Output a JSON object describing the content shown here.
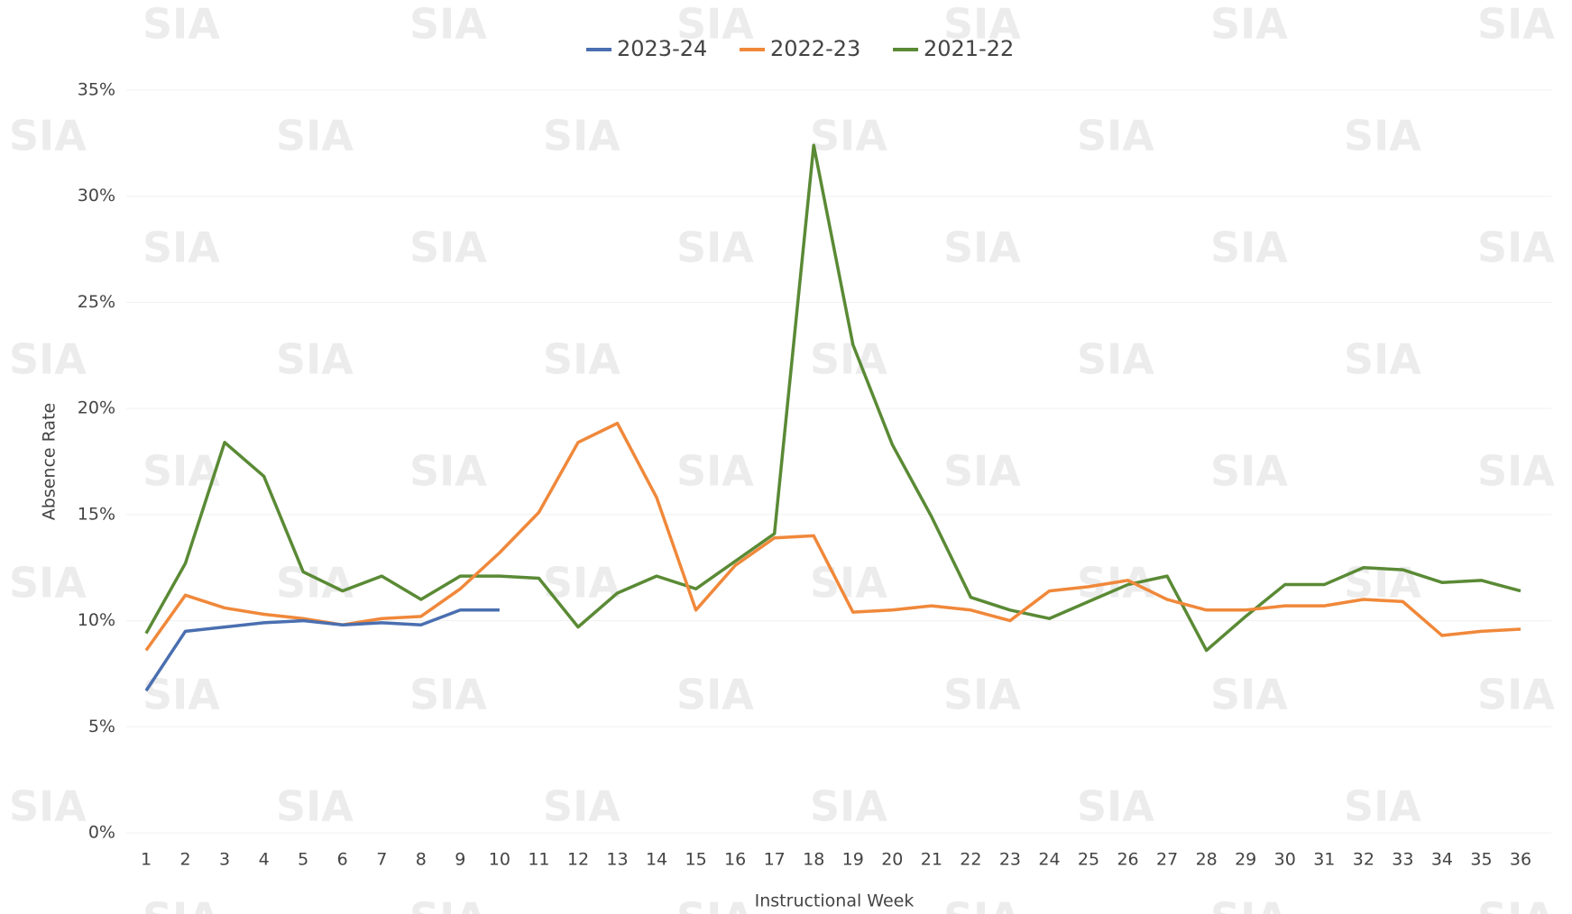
{
  "chart_data": {
    "type": "line",
    "watermark": "SIA",
    "x_label": "Instructional Week",
    "y_label": "Absence Rate",
    "categories": [
      "1",
      "2",
      "3",
      "4",
      "5",
      "6",
      "7",
      "8",
      "9",
      "10",
      "11",
      "12",
      "13",
      "14",
      "15",
      "16",
      "17",
      "18",
      "19",
      "20",
      "21",
      "22",
      "23",
      "24",
      "25",
      "26",
      "27",
      "28",
      "29",
      "30",
      "31",
      "32",
      "33",
      "34",
      "35",
      "36"
    ],
    "series": [
      {
        "name": "2023-24",
        "color": "#4a6fb0",
        "values": [
          6.7,
          9.5,
          9.7,
          9.9,
          10.0,
          9.8,
          9.9,
          9.8,
          10.5,
          10.5,
          null,
          null,
          null,
          null,
          null,
          null,
          null,
          null,
          null,
          null,
          null,
          null,
          null,
          null,
          null,
          null,
          null,
          null,
          null,
          null,
          null,
          null,
          null,
          null,
          null,
          null
        ]
      },
      {
        "name": "2022-23",
        "color": "#f0883a",
        "values": [
          8.6,
          11.2,
          10.6,
          10.3,
          10.1,
          9.8,
          10.1,
          10.2,
          11.5,
          13.2,
          15.1,
          18.4,
          19.3,
          15.8,
          10.5,
          12.6,
          13.9,
          14.0,
          10.4,
          10.5,
          10.7,
          10.5,
          10.0,
          11.4,
          11.6,
          11.9,
          11.0,
          10.5,
          10.5,
          10.7,
          10.7,
          11.0,
          10.9,
          9.3,
          9.5,
          9.6
        ]
      },
      {
        "name": "2021-22",
        "color": "#5a8a35",
        "values": [
          9.4,
          12.7,
          18.4,
          16.8,
          12.3,
          11.4,
          12.1,
          11.0,
          12.1,
          12.1,
          12.0,
          9.7,
          11.3,
          12.1,
          11.5,
          12.8,
          14.1,
          32.4,
          23.0,
          18.3,
          14.9,
          11.1,
          10.5,
          10.1,
          10.9,
          11.7,
          12.1,
          8.6,
          10.2,
          11.7,
          11.7,
          12.5,
          12.4,
          11.8,
          11.9,
          11.4
        ]
      }
    ],
    "ylim": [
      0,
      35
    ],
    "yticks": [
      {
        "value": 0,
        "label": "0%"
      },
      {
        "value": 5,
        "label": "5%"
      },
      {
        "value": 10,
        "label": "10%"
      },
      {
        "value": 15,
        "label": "15%"
      },
      {
        "value": 20,
        "label": "20%"
      },
      {
        "value": 25,
        "label": "25%"
      },
      {
        "value": 30,
        "label": "30%"
      },
      {
        "value": 35,
        "label": "35%"
      }
    ],
    "grid": true,
    "legend": "top"
  }
}
